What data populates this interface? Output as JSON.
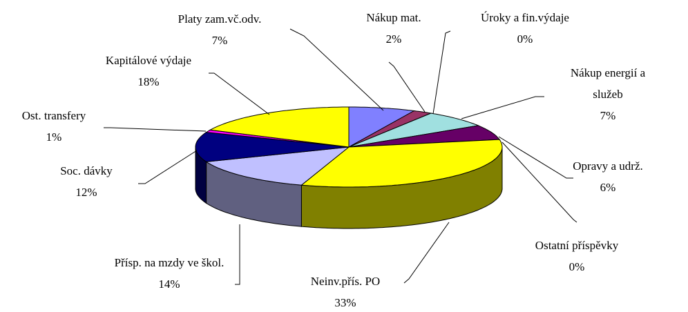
{
  "chart_data": {
    "type": "pie3d",
    "categories": [
      "Platy zam.vč.odv.",
      "Nákup mat.",
      "Úroky a fin.výdaje",
      "Nákup energií a služeb",
      "Opravy a udrž.",
      "Ostatní příspěvky",
      "Neinv.přís. PO",
      "Přísp. na mzdy ve škol.",
      "Soc. dávky",
      "Ost. transfery",
      "Kapitálové výdaje"
    ],
    "values": [
      7,
      2,
      0,
      7,
      6,
      0,
      33,
      14,
      12,
      1,
      18
    ],
    "value_labels": [
      "7%",
      "2%",
      "0%",
      "7%",
      "6%",
      "0%",
      "33%",
      "14%",
      "12%",
      "1%",
      "18%"
    ],
    "colors": [
      "#8080ff",
      "#993366",
      "#ffffcc",
      "#a0e0e0",
      "#660066",
      "#ff8080",
      "#ffff00",
      "#c0c0ff",
      "#000080",
      "#ff00ff",
      "#ffff00"
    ]
  }
}
